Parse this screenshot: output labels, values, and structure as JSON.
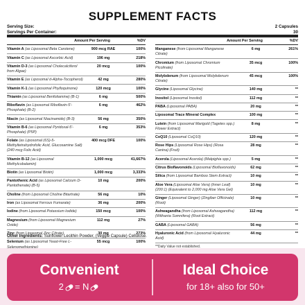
{
  "panel": {
    "title": "SUPPLEMENT FACTS",
    "serving_size_label": "Serving Size:",
    "serving_size_value": "2 Capsules",
    "servings_label": "Servings Per Container:",
    "servings_value": "30",
    "col_amount": "Amount Per Serving",
    "col_dv": "%DV",
    "left_items": [
      {
        "name": "Vitamin A",
        "source": "(as Liposomal Beta Carotene)",
        "amount": "900 mcg RAE",
        "dv": "100%"
      },
      {
        "name": "Vitamin C",
        "source": "(as Liposomal Ascorbic Acid)",
        "amount": "196 mg",
        "dv": "218%"
      },
      {
        "name": "Vitamin D-3",
        "source": "(as Liposomal Cholecalciferol from Algae)",
        "amount": "20 mcg",
        "dv": "100%"
      },
      {
        "name": "Vitamin E",
        "source": "(as Liposomal d-Alpha-Tocopherol)",
        "amount": "42 mg",
        "dv": "280%"
      },
      {
        "name": "Vitamin K-1",
        "source": "(as Liposomal Phylloquinone)",
        "amount": "120 mcg",
        "dv": "100%"
      },
      {
        "name": "Thiamin",
        "source": "(as Liposomal Benfotiamine) (B-1)",
        "amount": "6 mg",
        "dv": "500%"
      },
      {
        "name": "Riboflavin",
        "source": "(as Liposomal Riboflavin-5'-Phosphate) (B-2)",
        "amount": "6 mg",
        "dv": "462%"
      },
      {
        "name": "Niacin",
        "source": "(as Liposomal Niacinamide) (B-3)",
        "amount": "56 mg",
        "dv": "350%"
      },
      {
        "name": "Vitamin B-6",
        "source": "(as Liposomal Pyridoxal-5'-Phosphate) (P5P)",
        "amount": "6 mg",
        "dv": "353%"
      },
      {
        "name": "Folate",
        "source": "(as Liposomal (6S)-5-Methyltetrahydrofolic Acid, Glucosamine Salt) (240 mcg Folic Acid)",
        "amount": "400 mcg DFE",
        "dv": "100%"
      },
      {
        "name": "Vitamin B-12",
        "source": "(as Liposomal Methylcobalamin)",
        "amount": "1,000 mcg",
        "dv": "41,667%"
      },
      {
        "name": "Biotin",
        "source": "(as Liposomal Biotin)",
        "amount": "1,000 mcg",
        "dv": "3,333%"
      },
      {
        "name": "Pantothenic Acid",
        "source": "(as Liposomal Calcium D-Pantothenate) (B-5)",
        "amount": "10 mg",
        "dv": "200%"
      },
      {
        "name": "Choline",
        "source": "(from Liposomal Choline Bitartrate)",
        "amount": "56 mg",
        "dv": "10%"
      },
      {
        "name": "Iron",
        "source": "(as Liposomal Ferrous Fumarate)",
        "amount": "36 mg",
        "dv": "200%"
      },
      {
        "name": "Iodine",
        "source": "(from Liposomal Potassium Iodide)",
        "amount": "150 mcg",
        "dv": "100%"
      },
      {
        "name": "Magnesium",
        "source": "(from Liposomal Magnesium Oxide)",
        "amount": "112 mg",
        "dv": "27%"
      },
      {
        "name": "Zinc",
        "source": "(from Liposomal Zinc Citrate)",
        "amount": "30 mg",
        "dv": "273%"
      },
      {
        "name": "Selenium",
        "source": "(as Liposomal Yeast-Free L-Selenomethionine)",
        "amount": "55 mcg",
        "dv": "100%"
      }
    ],
    "right_items": [
      {
        "name": "Manganese",
        "source": "(from Liposomal Manganese Citrate)",
        "amount": "6 mg",
        "dv": "261%"
      },
      {
        "name": "Chromium",
        "source": "(from Liposomal Chromium Picolinate)",
        "amount": "35 mcg",
        "dv": "100%"
      },
      {
        "name": "Molybdenum",
        "source": "(from Liposomal Molybdenum Citrate)",
        "amount": "45 mcg",
        "dv": "100%"
      },
      {
        "name": "Glycine",
        "source": "(Liposomal Glycine)",
        "amount": "140 mg",
        "dv": "**"
      },
      {
        "name": "Inositol",
        "source": "(Liposomal Inositol)",
        "amount": "112 mg",
        "dv": "**"
      },
      {
        "name": "PABA",
        "source": "(Liposomal PABA)",
        "amount": "20 mg",
        "dv": "**"
      },
      {
        "name": "Liposomal Trace Mineral Complex",
        "source": "",
        "amount": "100 mg",
        "dv": "**"
      },
      {
        "name": "Lutein",
        "source": "(from Liposomal Marigold (Tagetes spp.) Flower Extract)",
        "amount": "8 mg",
        "dv": "**"
      },
      {
        "name": "CoQ10",
        "source": "(Liposomal CoQ10)",
        "amount": "120 mg",
        "dv": "**"
      },
      {
        "name": "Rose Hips",
        "source": "(Liposomal Rose Hips) (Rosa Canina) (Fruit)",
        "amount": "28 mg",
        "dv": "**"
      },
      {
        "name": "Acerola",
        "source": "(Liposomal Acerola) (Malpighia spp.)",
        "amount": "5 mg",
        "dv": "**"
      },
      {
        "name": "Citrus Bioflavonoids",
        "source": "(Liposomal Bioflavonoids)",
        "amount": "62 mg",
        "dv": "**"
      },
      {
        "name": "Silica",
        "source": "(from Liposomal Bamboo Stem Extract)",
        "amount": "10 mg",
        "dv": "**"
      },
      {
        "name": "Aloe Vera",
        "source": "(Liposomal Aloe Vera) (Inner Leaf) (200:1) (Equivalent to 2,000 mg Aloe Vera Gel)",
        "amount": "10 mg",
        "dv": "**"
      },
      {
        "name": "Ginger",
        "source": "(Liposomal Ginger) (Zingiber Officinale) (Root)",
        "amount": "10 mg",
        "dv": "**"
      },
      {
        "name": "Ashwagandha",
        "source": "(from Liposomal Ashwagandha) (Withania Somnifera) (Root Extract)",
        "amount": "112 mg",
        "dv": "**"
      },
      {
        "name": "GABA",
        "source": "(Liposomal GABA)",
        "amount": "56 mg",
        "dv": "**"
      },
      {
        "name": "Hyaluronic Acid",
        "source": "(from Liposomal Hyaluronic Acid)",
        "amount": "44 mg",
        "dv": "**"
      }
    ],
    "dv_note": "**Daily Value not established.",
    "other_label": "Other Ingredients:",
    "other_value": "Sunflower Lecithin Powder, (Veggie Capsule) Cellulose."
  },
  "banner": {
    "left_title": "Convenient",
    "left_sub_prefix": "2",
    "left_sub_suffix": "= N",
    "right_title": "Ideal Choice",
    "right_sub": "for 18+ also for 50+",
    "card_color": "#d2366c",
    "bg_color": "#f8e6ee",
    "icon": "capsule-icon"
  }
}
